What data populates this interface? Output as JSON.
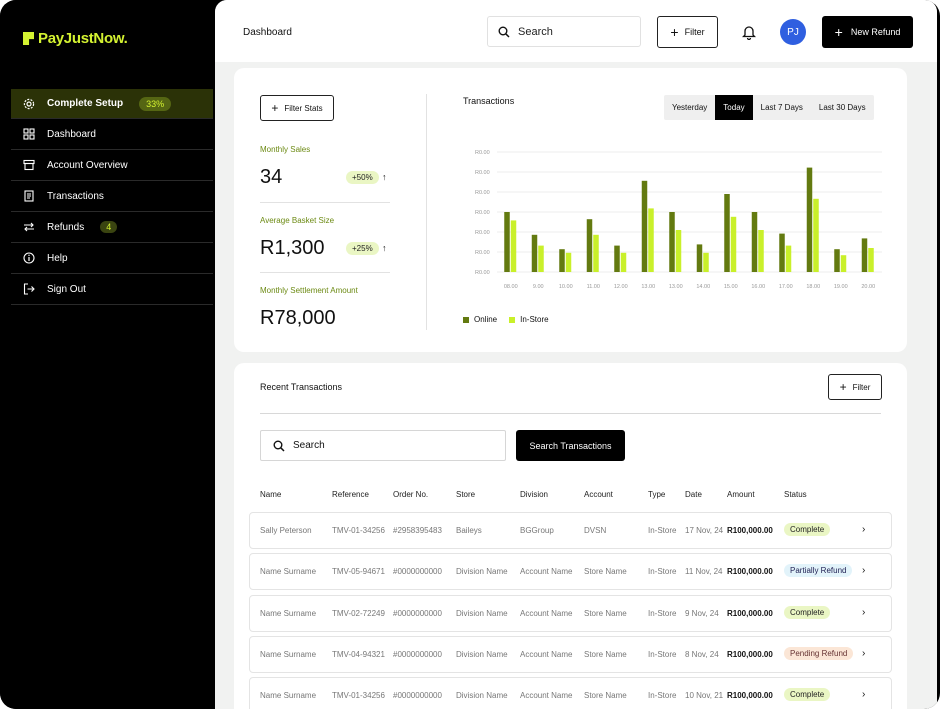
{
  "brand": {
    "name": "PayJustNow.",
    "accent": "#d4f231"
  },
  "sidebar": {
    "items": [
      {
        "label": "Complete Setup",
        "icon": "gear-icon",
        "badge": "33%",
        "active": true
      },
      {
        "label": "Dashboard",
        "icon": "grid-icon"
      },
      {
        "label": "Account Overview",
        "icon": "store-icon"
      },
      {
        "label": "Transactions",
        "icon": "receipt-icon"
      },
      {
        "label": "Refunds",
        "icon": "swap-icon",
        "badge": "4"
      },
      {
        "label": "Help",
        "icon": "info-icon"
      },
      {
        "label": "Sign Out",
        "icon": "sign-out-icon"
      }
    ]
  },
  "header": {
    "title": "Dashboard",
    "search_placeholder": "Search",
    "filter_label": "Filter",
    "avatar_initials": "PJ",
    "new_refund_label": "New Refund"
  },
  "stats": {
    "filter_label": "Filter Stats",
    "items": [
      {
        "label": "Monthly Sales",
        "value": "34",
        "change": "+50%",
        "arrow": "↑"
      },
      {
        "label": "Average Basket Size",
        "value": "R1,300",
        "change": "+25%",
        "arrow": "↑"
      },
      {
        "label": "Monthly Settlement Amount",
        "value": "R78,000"
      }
    ]
  },
  "chart_data": {
    "type": "bar",
    "title": "Transactions",
    "range_tabs": [
      "Yesterday",
      "Today",
      "Last 7 Days",
      "Last 30 Days"
    ],
    "active_range": "Today",
    "y_tick_labels": [
      "R0.00",
      "R0.00",
      "R0.00",
      "R0.00",
      "R0.00",
      "R0.00",
      "R0.00"
    ],
    "categories": [
      "08.00",
      "9.00",
      "10.00",
      "11.00",
      "12.00",
      "13.00",
      "13.00",
      "14.00",
      "15.00",
      "16.00",
      "17.00",
      "18.00",
      "19.00",
      "20.00"
    ],
    "ylim": [
      0,
      100
    ],
    "series": [
      {
        "name": "Online",
        "color": "#637a10",
        "values": [
          50,
          31,
          19,
          44,
          22,
          76,
          50,
          23,
          65,
          50,
          32,
          87,
          19,
          28
        ]
      },
      {
        "name": "In-Store",
        "color": "#c9f02a",
        "values": [
          43,
          22,
          16,
          31,
          16,
          53,
          35,
          16,
          46,
          35,
          22,
          61,
          14,
          20
        ]
      }
    ],
    "grid": true,
    "legend": "bottom-left"
  },
  "transactions": {
    "title": "Recent Transactions",
    "filter_label": "Filter",
    "search_placeholder": "Search",
    "search_button": "Search Transactions",
    "columns": [
      "Name",
      "Reference",
      "Order No.",
      "Store",
      "Division",
      "Account",
      "Type",
      "Date",
      "Amount",
      "Status"
    ],
    "rows": [
      {
        "name": "Sally Peterson",
        "reference": "TMV-01-34256",
        "order": "#2958395483",
        "store": "Baileys",
        "division": "BGGroup",
        "account": "DVSN",
        "type": "In-Store",
        "date": "17 Nov, 24",
        "amount": "R100,000.00",
        "status": "Complete",
        "status_kind": "complete"
      },
      {
        "name": "Name Surname",
        "reference": "TMV-05-94671",
        "order": "#0000000000",
        "store": "Division Name",
        "division": "Account Name",
        "account": "Store Name",
        "type": "In-Store",
        "date": "11 Nov, 24",
        "amount": "R100,000.00",
        "status": "Partially Refund",
        "status_kind": "partial"
      },
      {
        "name": "Name Surname",
        "reference": "TMV-02-72249",
        "order": "#0000000000",
        "store": "Division Name",
        "division": "Account Name",
        "account": "Store Name",
        "type": "In-Store",
        "date": "9 Nov, 24",
        "amount": "R100,000.00",
        "status": "Complete",
        "status_kind": "complete"
      },
      {
        "name": "Name Surname",
        "reference": "TMV-04-94321",
        "order": "#0000000000",
        "store": "Division Name",
        "division": "Account Name",
        "account": "Store Name",
        "type": "In-Store",
        "date": "8 Nov, 24",
        "amount": "R100,000.00",
        "status": "Pending Refund",
        "status_kind": "pending"
      },
      {
        "name": "Name Surname",
        "reference": "TMV-01-34256",
        "order": "#0000000000",
        "store": "Division Name",
        "division": "Account Name",
        "account": "Store Name",
        "type": "In-Store",
        "date": "10 Nov, 21",
        "amount": "R100,000.00",
        "status": "Complete",
        "status_kind": "complete"
      }
    ]
  }
}
